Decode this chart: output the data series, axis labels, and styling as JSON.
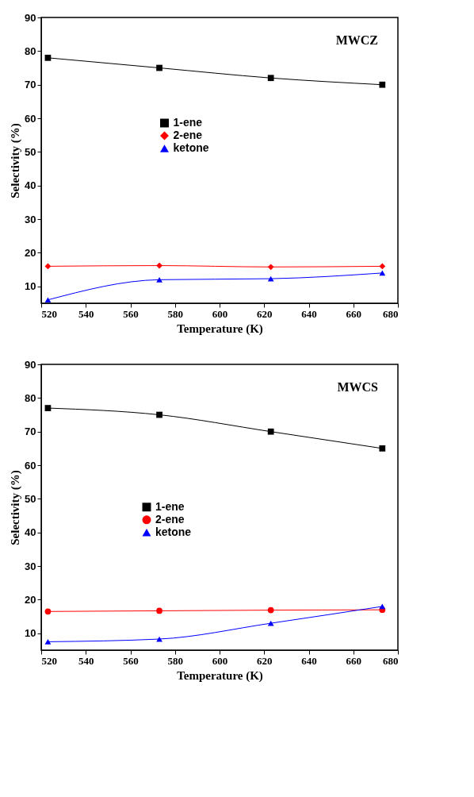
{
  "chart_data": [
    {
      "type": "line",
      "xlabel": "Temperature (K)",
      "ylabel": "Selectivity (%)",
      "annotations": [
        "MWCZ"
      ],
      "x": [
        523,
        573,
        623,
        673
      ],
      "xlim": [
        520,
        680
      ],
      "xticks": [
        520,
        540,
        560,
        580,
        600,
        620,
        640,
        660,
        680
      ],
      "ylim": [
        5,
        90
      ],
      "yticks": [
        10,
        20,
        30,
        40,
        50,
        60,
        70,
        80,
        90
      ],
      "grid": false,
      "legend": "center",
      "series": [
        {
          "name": "1-ene",
          "color": "#000000",
          "marker": "square",
          "values": [
            78,
            75,
            72,
            70
          ]
        },
        {
          "name": "2-ene",
          "color": "#ff0000",
          "marker": "diamond",
          "values": [
            16,
            16.2,
            15.8,
            16
          ]
        },
        {
          "name": "ketone",
          "color": "#0000ff",
          "marker": "triangle",
          "values": [
            6,
            12,
            12.3,
            14
          ]
        }
      ]
    },
    {
      "type": "line",
      "xlabel": "Temperature (K)",
      "ylabel": "Selectivity (%)",
      "annotations": [
        "MWCS"
      ],
      "x": [
        523,
        573,
        623,
        673
      ],
      "xlim": [
        520,
        680
      ],
      "xticks": [
        520,
        540,
        560,
        580,
        600,
        620,
        640,
        660,
        680
      ],
      "ylim": [
        5,
        90
      ],
      "yticks": [
        10,
        20,
        30,
        40,
        50,
        60,
        70,
        80,
        90
      ],
      "grid": false,
      "legend": "center left",
      "series": [
        {
          "name": "1-ene",
          "color": "#000000",
          "marker": "square",
          "values": [
            77,
            75,
            70,
            65
          ]
        },
        {
          "name": "2-ene",
          "color": "#ff0000",
          "marker": "circle",
          "values": [
            16.5,
            16.7,
            16.9,
            17
          ]
        },
        {
          "name": "ketone",
          "color": "#0000ff",
          "marker": "triangle",
          "values": [
            7.5,
            8.3,
            13,
            18
          ]
        }
      ]
    }
  ]
}
